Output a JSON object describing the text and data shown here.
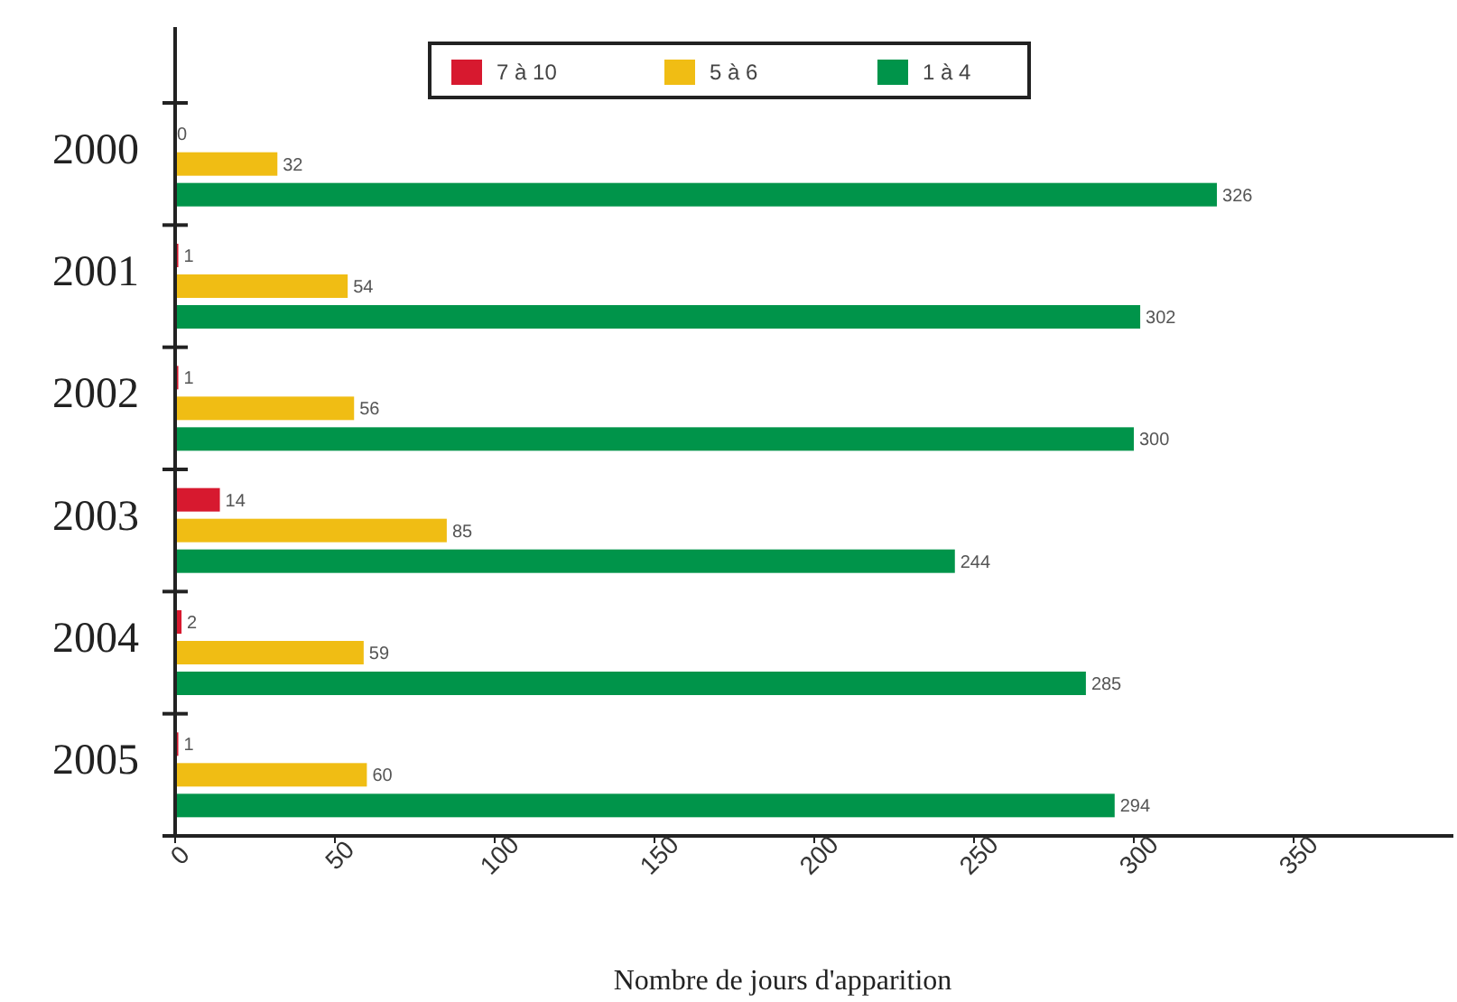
{
  "chart_data": {
    "type": "bar",
    "orientation": "horizontal",
    "xlabel": "Nombre de jours d'apparition",
    "categories": [
      "2000",
      "2001",
      "2002",
      "2003",
      "2004",
      "2005"
    ],
    "series": [
      {
        "name": "7 à 10",
        "color": "#d7192f",
        "values": [
          0,
          1,
          1,
          14,
          2,
          1
        ]
      },
      {
        "name": "5 à 6",
        "color": "#f0bd14",
        "values": [
          32,
          54,
          56,
          85,
          59,
          60
        ]
      },
      {
        "name": "1 à 4",
        "color": "#00944a",
        "values": [
          326,
          302,
          300,
          244,
          285,
          294
        ]
      }
    ],
    "xlim": [
      0,
      400
    ],
    "xticks": [
      0,
      50,
      100,
      150,
      200,
      250,
      300,
      350
    ],
    "data_labels": true,
    "legend": "top",
    "grid": false
  }
}
